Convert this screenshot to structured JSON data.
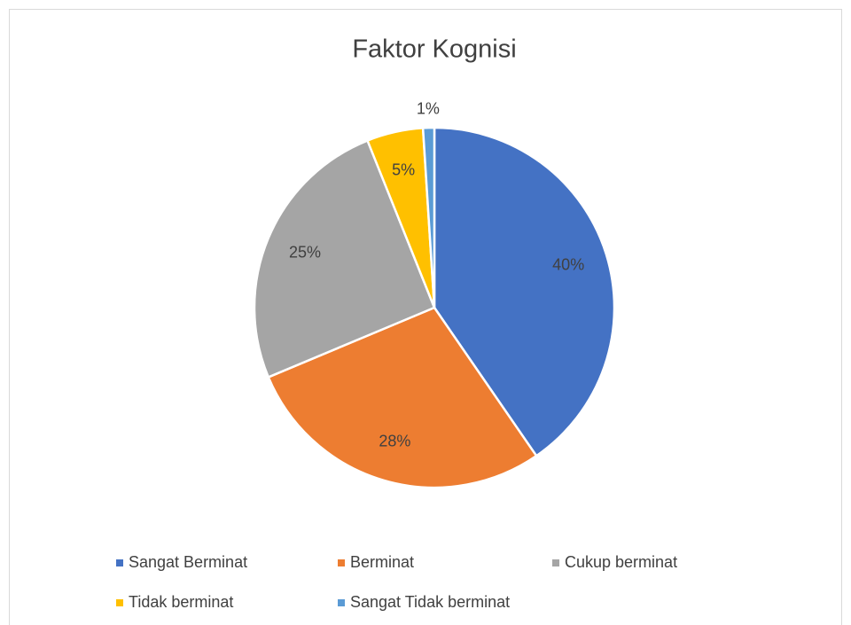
{
  "chart_data": {
    "type": "pie",
    "title": "Faktor Kognisi",
    "categories": [
      "Sangat Berminat",
      "Berminat",
      "Cukup berminat",
      "Tidak berminat",
      "Sangat Tidak berminat"
    ],
    "values": [
      40,
      28,
      25,
      5,
      1
    ],
    "value_labels": [
      "40%",
      "28%",
      "25%",
      "5%",
      "1%"
    ],
    "colors": [
      "#4472c4",
      "#ed7d31",
      "#a5a5a5",
      "#ffc000",
      "#5b9bd5"
    ],
    "legend": "bottom"
  }
}
